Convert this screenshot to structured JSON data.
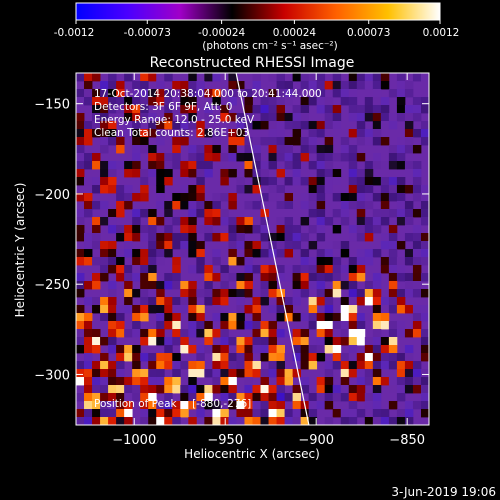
{
  "colorbar": {
    "ticks": [
      "-0.0012",
      "-0.00073",
      "-0.00024",
      "0.00024",
      "0.00073",
      "0.0012"
    ],
    "tick_values": [
      -0.0012,
      -0.00073,
      -0.00024,
      0.00024,
      0.00073,
      0.0012
    ],
    "range": [
      -0.0012,
      0.0012
    ],
    "unit_label": "(photons cm⁻² s⁻¹ asec⁻²)",
    "colormap": [
      "#0000ff",
      "#4b00ff",
      "#a000c8",
      "#000000",
      "#c80000",
      "#ff6000",
      "#ffc000",
      "#ffffff"
    ]
  },
  "chart_data": {
    "type": "heatmap",
    "title": "Reconstructed RHESSI Image",
    "xlabel": "Heliocentric X (arcsec)",
    "ylabel": "Heliocentric Y (arcsec)",
    "xlim": [
      -1032,
      -838
    ],
    "ylim": [
      -328,
      -133
    ],
    "xticks": [
      -1000,
      -950,
      -900,
      -850
    ],
    "xtick_labels": [
      "−1000",
      "−950",
      "−900",
      "−850"
    ],
    "yticks": [
      -150,
      -200,
      -250,
      -300
    ],
    "ytick_labels": [
      "−150",
      "−200",
      "−250",
      "−300"
    ],
    "limb_line": {
      "x1": -944,
      "y1": -133,
      "x2": -904,
      "y2": -328,
      "color": "#ffffff"
    },
    "background_color": "#6a2aa8",
    "annotations": [
      "17-Oct-2014 20:38:04.000 to 20:41:44.000",
      "Detectors: 3F 6F 9F, Att: 0",
      "Energy Range: 12.0 - 25.0 keV",
      "Clean     Total counts: 2.86E+03"
    ],
    "peak_annotation": "Position of Peak = [-880,-276]",
    "peak_position": [
      -880,
      -276
    ],
    "grid": false
  },
  "footer": {
    "date": "3-Jun-2019 19:06"
  }
}
